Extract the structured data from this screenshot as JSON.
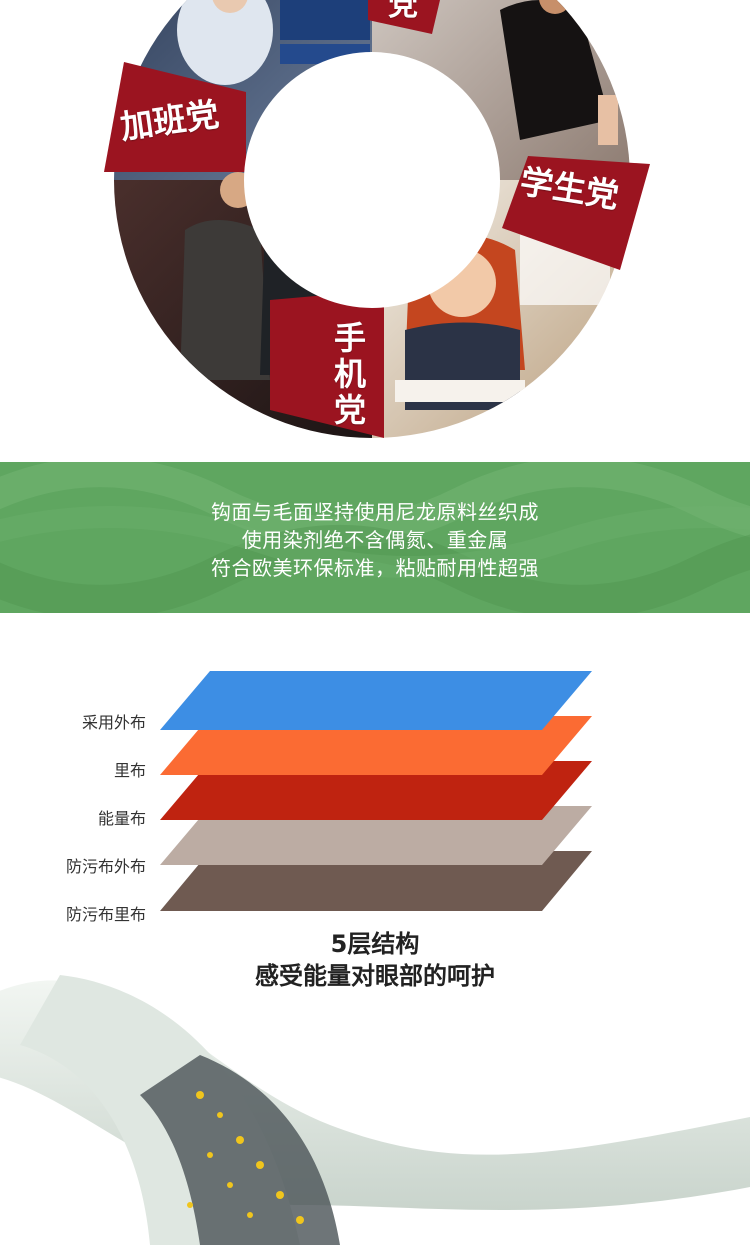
{
  "hero": {
    "segments": [
      {
        "label": "党"
      },
      {
        "label": "加班党"
      },
      {
        "label": "学生党"
      },
      {
        "label": "手机党"
      }
    ],
    "accent_color": "#9b1420"
  },
  "material": {
    "lines": [
      "钩面与毛面坚持使用尼龙原料丝织成",
      "使用染剂绝不含偶氮、重金属",
      "符合欧美环保标准，粘贴耐用性超强"
    ],
    "band_color": "#5fa660"
  },
  "layers": {
    "items": [
      {
        "label": "采用外布",
        "color": "#3d8ee4"
      },
      {
        "label": "里布",
        "color": "#fb6b33"
      },
      {
        "label": "能量布",
        "color": "#bf2310"
      },
      {
        "label": "防污布外布",
        "color": "#bcaca3"
      },
      {
        "label": "防污布里布",
        "color": "#6f5a51"
      }
    ],
    "title": "5层结构",
    "subtitle": "感受能量对眼部的呵护"
  }
}
